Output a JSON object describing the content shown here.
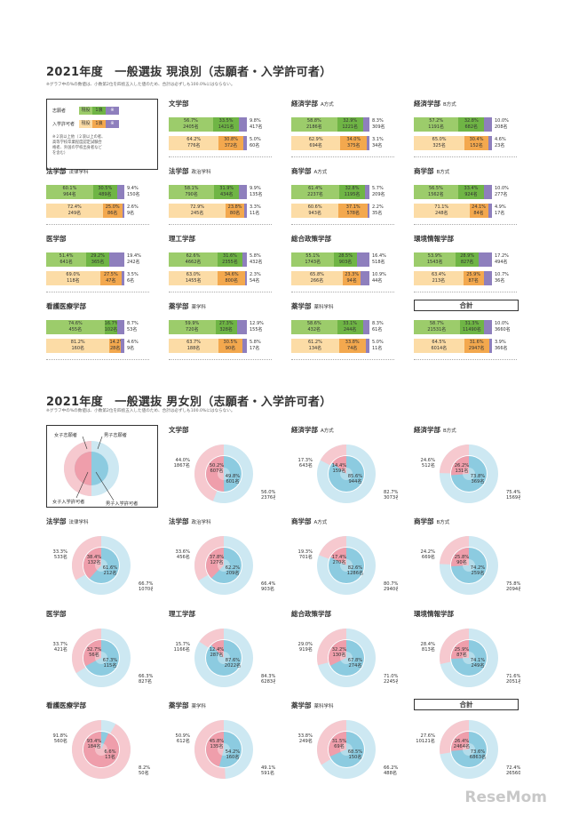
{
  "section1": {
    "title": "2021年度　一般選抜 現浪別（志願者・入学許可者）",
    "note": "※グラフ中の%の数値は、小数第2位を四捨五入した値のため、合計は必ずしも100.0%にはならない。",
    "legend": {
      "applicants": "志願者",
      "admitted": "入学許可者",
      "current": "現役",
      "ronin1": "1浪",
      "ronin2": "※",
      "note": "※２浪以上他（２浪以上の者、高等学校卒業程度認定試験合格者、外国の学校出身者などを含む）"
    },
    "colors": {
      "applicant_current": "#9ccc6b",
      "applicant_ronin": "#6fb545",
      "admitted_current": "#fcdca6",
      "admitted_ronin": "#f3a84e",
      "other": "#8e7fbd"
    },
    "panels": [
      {
        "title": "文学部",
        "sub": "",
        "app": [
          [
            "56.7%",
            "2405名"
          ],
          [
            "33.5%",
            "1421名"
          ],
          [
            "9.8%",
            "417名"
          ]
        ],
        "adm": [
          [
            "64.2%",
            "776名"
          ],
          [
            "30.8%",
            "372名"
          ],
          [
            "5.0%",
            "60名"
          ]
        ]
      },
      {
        "title": "経済学部",
        "sub": "A方式",
        "app": [
          [
            "58.8%",
            "2186名"
          ],
          [
            "32.9%",
            "1221名"
          ],
          [
            "8.3%",
            "309名"
          ]
        ],
        "adm": [
          [
            "62.9%",
            "694名"
          ],
          [
            "34.0%",
            "375名"
          ],
          [
            "3.1%",
            "34名"
          ]
        ]
      },
      {
        "title": "経済学部",
        "sub": "B方式",
        "app": [
          [
            "57.2%",
            "1191名"
          ],
          [
            "32.8%",
            "682名"
          ],
          [
            "10.0%",
            "208名"
          ]
        ],
        "adm": [
          [
            "65.0%",
            "325名"
          ],
          [
            "30.4%",
            "152名"
          ],
          [
            "4.6%",
            "23名"
          ]
        ]
      },
      {
        "title": "法学部",
        "sub": "法律学科",
        "app": [
          [
            "60.1%",
            "964名"
          ],
          [
            "30.5%",
            "489名"
          ],
          [
            "9.4%",
            "150名"
          ]
        ],
        "adm": [
          [
            "72.4%",
            "249名"
          ],
          [
            "25.0%",
            "86名"
          ],
          [
            "2.6%",
            "9名"
          ]
        ]
      },
      {
        "title": "法学部",
        "sub": "政治学科",
        "app": [
          [
            "58.1%",
            "790名"
          ],
          [
            "31.9%",
            "434名"
          ],
          [
            "9.9%",
            "135名"
          ]
        ],
        "adm": [
          [
            "72.9%",
            "245名"
          ],
          [
            "23.8%",
            "80名"
          ],
          [
            "3.3%",
            "11名"
          ]
        ]
      },
      {
        "title": "商学部",
        "sub": "A方式",
        "app": [
          [
            "61.4%",
            "2237名"
          ],
          [
            "32.8%",
            "1195名"
          ],
          [
            "5.7%",
            "209名"
          ]
        ],
        "adm": [
          [
            "60.6%",
            "943名"
          ],
          [
            "37.1%",
            "578名"
          ],
          [
            "2.2%",
            "35名"
          ]
        ]
      },
      {
        "title": "商学部",
        "sub": "B方式",
        "app": [
          [
            "56.5%",
            "1562名"
          ],
          [
            "33.4%",
            "924名"
          ],
          [
            "10.0%",
            "277名"
          ]
        ],
        "adm": [
          [
            "71.1%",
            "248名"
          ],
          [
            "24.1%",
            "84名"
          ],
          [
            "4.9%",
            "17名"
          ]
        ]
      },
      {
        "title": "医学部",
        "sub": "",
        "app": [
          [
            "51.4%",
            "641名"
          ],
          [
            "29.2%",
            "365名"
          ],
          [
            "19.4%",
            "242名"
          ]
        ],
        "adm": [
          [
            "69.0%",
            "118名"
          ],
          [
            "27.5%",
            "47名"
          ],
          [
            "3.5%",
            "6名"
          ]
        ]
      },
      {
        "title": "理工学部",
        "sub": "",
        "app": [
          [
            "62.6%",
            "4662名"
          ],
          [
            "31.6%",
            "2355名"
          ],
          [
            "5.8%",
            "432名"
          ]
        ],
        "adm": [
          [
            "63.0%",
            "1455名"
          ],
          [
            "34.6%",
            "800名"
          ],
          [
            "2.3%",
            "54名"
          ]
        ]
      },
      {
        "title": "総合政策学部",
        "sub": "",
        "app": [
          [
            "55.1%",
            "1743名"
          ],
          [
            "28.5%",
            "903名"
          ],
          [
            "16.4%",
            "518名"
          ]
        ],
        "adm": [
          [
            "65.8%",
            "266名"
          ],
          [
            "23.3%",
            "94名"
          ],
          [
            "10.9%",
            "44名"
          ]
        ]
      },
      {
        "title": "環境情報学部",
        "sub": "",
        "app": [
          [
            "53.9%",
            "1543名"
          ],
          [
            "28.9%",
            "827名"
          ],
          [
            "17.2%",
            "494名"
          ]
        ],
        "adm": [
          [
            "63.4%",
            "213名"
          ],
          [
            "25.9%",
            "87名"
          ],
          [
            "10.7%",
            "36名"
          ]
        ]
      },
      {
        "title": "看護医療学部",
        "sub": "",
        "app": [
          [
            "74.6%",
            "455名"
          ],
          [
            "16.7%",
            "102名"
          ],
          [
            "8.7%",
            "53名"
          ]
        ],
        "adm": [
          [
            "81.2%",
            "160名"
          ],
          [
            "14.2%",
            "28名"
          ],
          [
            "4.6%",
            "9名"
          ]
        ]
      },
      {
        "title": "薬学部",
        "sub": "薬学科",
        "app": [
          [
            "59.9%",
            "720名"
          ],
          [
            "27.3%",
            "328名"
          ],
          [
            "12.9%",
            "155名"
          ]
        ],
        "adm": [
          [
            "63.7%",
            "188名"
          ],
          [
            "30.5%",
            "90名"
          ],
          [
            "5.8%",
            "17名"
          ]
        ]
      },
      {
        "title": "薬学部",
        "sub": "薬科学科",
        "app": [
          [
            "58.6%",
            "432名"
          ],
          [
            "33.1%",
            "244名"
          ],
          [
            "8.3%",
            "61名"
          ]
        ],
        "adm": [
          [
            "61.2%",
            "134名"
          ],
          [
            "33.8%",
            "74名"
          ],
          [
            "5.0%",
            "11名"
          ]
        ]
      },
      {
        "title": "合計",
        "sub": "",
        "boxed": true,
        "app": [
          [
            "58.7%",
            "21531名"
          ],
          [
            "31.3%",
            "11490名"
          ],
          [
            "10.0%",
            "3660名"
          ]
        ],
        "adm": [
          [
            "64.5%",
            "6014名"
          ],
          [
            "31.6%",
            "2947名"
          ],
          [
            "3.9%",
            "366名"
          ]
        ]
      }
    ]
  },
  "section2": {
    "title": "2021年度　一般選抜 男女別（志願者・入学許可者）",
    "note": "※グラフ中の%の数値は、小数第2位を四捨五入した値のため、合計は必ずしも100.0%にはならない。",
    "legend": {
      "female_app": "女子志願者",
      "male_app": "男子志願者",
      "female_adm": "女子入学許可者",
      "male_adm": "男子入学許可者"
    },
    "colors": {
      "female_outer": "#f6c9cf",
      "male_outer": "#cde8f2",
      "female_inner": "#ef9eab",
      "male_inner": "#8ccbe0"
    },
    "panels": [
      {
        "title": "文学部",
        "sub": "",
        "of": [
          "44.0%",
          "1867名"
        ],
        "om": [
          "56.0%",
          "2376名"
        ],
        "if": [
          "50.2%",
          "607名"
        ],
        "im": [
          "49.8%",
          "601名"
        ]
      },
      {
        "title": "経済学部",
        "sub": "A方式",
        "of": [
          "17.3%",
          "643名"
        ],
        "om": [
          "82.7%",
          "3073名"
        ],
        "if": [
          "14.4%",
          "159名"
        ],
        "im": [
          "85.6%",
          "944名"
        ]
      },
      {
        "title": "経済学部",
        "sub": "B方式",
        "of": [
          "24.6%",
          "512名"
        ],
        "om": [
          "75.4%",
          "1569名"
        ],
        "if": [
          "26.2%",
          "131名"
        ],
        "im": [
          "73.8%",
          "369名"
        ]
      },
      {
        "title": "法学部",
        "sub": "法律学科",
        "of": [
          "33.3%",
          "533名"
        ],
        "om": [
          "66.7%",
          "1070名"
        ],
        "if": [
          "38.4%",
          "132名"
        ],
        "im": [
          "61.6%",
          "212名"
        ]
      },
      {
        "title": "法学部",
        "sub": "政治学科",
        "of": [
          "33.6%",
          "456名"
        ],
        "om": [
          "66.4%",
          "903名"
        ],
        "if": [
          "37.8%",
          "127名"
        ],
        "im": [
          "62.2%",
          "209名"
        ]
      },
      {
        "title": "商学部",
        "sub": "A方式",
        "of": [
          "19.3%",
          "701名"
        ],
        "om": [
          "80.7%",
          "2940名"
        ],
        "if": [
          "17.4%",
          "270名"
        ],
        "im": [
          "82.6%",
          "1286名"
        ]
      },
      {
        "title": "商学部",
        "sub": "B方式",
        "of": [
          "24.2%",
          "669名"
        ],
        "om": [
          "75.8%",
          "2094名"
        ],
        "if": [
          "25.8%",
          "90名"
        ],
        "im": [
          "74.2%",
          "259名"
        ]
      },
      {
        "title": "医学部",
        "sub": "",
        "of": [
          "33.7%",
          "421名"
        ],
        "om": [
          "66.3%",
          "827名"
        ],
        "if": [
          "32.7%",
          "56名"
        ],
        "im": [
          "67.3%",
          "115名"
        ]
      },
      {
        "title": "理工学部",
        "sub": "",
        "of": [
          "15.7%",
          "1166名"
        ],
        "om": [
          "84.3%",
          "6283名"
        ],
        "if": [
          "12.4%",
          "287名"
        ],
        "im": [
          "87.6%",
          "2022名"
        ]
      },
      {
        "title": "総合政策学部",
        "sub": "",
        "of": [
          "29.0%",
          "919名"
        ],
        "om": [
          "71.0%",
          "2245名"
        ],
        "if": [
          "32.2%",
          "130名"
        ],
        "im": [
          "67.8%",
          "274名"
        ]
      },
      {
        "title": "環境情報学部",
        "sub": "",
        "of": [
          "28.4%",
          "813名"
        ],
        "om": [
          "71.6%",
          "2051名"
        ],
        "if": [
          "25.9%",
          "87名"
        ],
        "im": [
          "74.1%",
          "249名"
        ]
      },
      {
        "title": "看護医療学部",
        "sub": "",
        "of": [
          "91.8%",
          "560名"
        ],
        "om": [
          "8.2%",
          "50名"
        ],
        "if": [
          "93.4%",
          "184名"
        ],
        "im": [
          "6.6%",
          "13名"
        ]
      },
      {
        "title": "薬学部",
        "sub": "薬学科",
        "of": [
          "50.9%",
          "612名"
        ],
        "om": [
          "49.1%",
          "591名"
        ],
        "if": [
          "45.8%",
          "135名"
        ],
        "im": [
          "54.2%",
          "160名"
        ]
      },
      {
        "title": "薬学部",
        "sub": "薬科学科",
        "of": [
          "33.8%",
          "249名"
        ],
        "om": [
          "66.2%",
          "488名"
        ],
        "if": [
          "31.5%",
          "69名"
        ],
        "im": [
          "68.5%",
          "150名"
        ]
      },
      {
        "title": "合計",
        "sub": "",
        "boxed": true,
        "of": [
          "27.6%",
          "10121名"
        ],
        "om": [
          "72.4%",
          "26560名"
        ],
        "if": [
          "26.4%",
          "2464名"
        ],
        "im": [
          "73.6%",
          "6863名"
        ]
      }
    ]
  },
  "watermark": "ReseMom",
  "chart_data": [
    {
      "type": "bar",
      "title": "2021年度　一般選抜 現浪別（志願者・入学許可者）",
      "categories": [
        "文学部",
        "経済学部 A方式",
        "経済学部 B方式",
        "法学部 法律学科",
        "法学部 政治学科",
        "商学部 A方式",
        "商学部 B方式",
        "医学部",
        "理工学部",
        "総合政策学部",
        "環境情報学部",
        "看護医療学部",
        "薬学部 薬学科",
        "薬学部 薬科学科",
        "合計"
      ],
      "series": [
        {
          "name": "志願者 現役",
          "values": [
            56.7,
            58.8,
            57.2,
            60.1,
            58.1,
            61.4,
            56.5,
            51.4,
            62.6,
            55.1,
            53.9,
            74.6,
            59.9,
            58.6,
            58.7
          ]
        },
        {
          "name": "志願者 1浪",
          "values": [
            33.5,
            32.9,
            32.8,
            30.5,
            31.9,
            32.8,
            33.4,
            29.2,
            31.6,
            28.5,
            28.9,
            16.7,
            27.3,
            33.1,
            31.3
          ]
        },
        {
          "name": "志願者 ※",
          "values": [
            9.8,
            8.3,
            10.0,
            9.4,
            9.9,
            5.7,
            10.0,
            19.4,
            5.8,
            16.4,
            17.2,
            8.7,
            12.9,
            8.3,
            10.0
          ]
        },
        {
          "name": "入学許可者 現役",
          "values": [
            64.2,
            62.9,
            65.0,
            72.4,
            72.9,
            60.6,
            71.1,
            69.0,
            63.0,
            65.8,
            63.4,
            81.2,
            63.7,
            61.2,
            64.5
          ]
        },
        {
          "name": "入学許可者 1浪",
          "values": [
            30.8,
            34.0,
            30.4,
            25.0,
            23.8,
            37.1,
            24.1,
            27.5,
            34.6,
            23.3,
            25.9,
            14.2,
            30.5,
            33.8,
            31.6
          ]
        },
        {
          "name": "入学許可者 ※",
          "values": [
            5.0,
            3.1,
            4.6,
            2.6,
            3.3,
            2.2,
            4.9,
            3.5,
            2.3,
            10.9,
            10.7,
            4.6,
            5.8,
            5.0,
            3.9
          ]
        }
      ]
    },
    {
      "type": "pie",
      "title": "2021年度　一般選抜 男女別（志願者・入学許可者）",
      "categories": [
        "文学部",
        "経済学部 A方式",
        "経済学部 B方式",
        "法学部 法律学科",
        "法学部 政治学科",
        "商学部 A方式",
        "商学部 B方式",
        "医学部",
        "理工学部",
        "総合政策学部",
        "環境情報学部",
        "看護医療学部",
        "薬学部 薬学科",
        "薬学部 薬科学科",
        "合計"
      ],
      "series": [
        {
          "name": "女子志願者",
          "values": [
            44.0,
            17.3,
            24.6,
            33.3,
            33.6,
            19.3,
            24.2,
            33.7,
            15.7,
            29.0,
            28.4,
            91.8,
            50.9,
            33.8,
            27.6
          ]
        },
        {
          "name": "男子志願者",
          "values": [
            56.0,
            82.7,
            75.4,
            66.7,
            66.4,
            80.7,
            75.8,
            66.3,
            84.3,
            71.0,
            71.6,
            8.2,
            49.1,
            66.2,
            72.4
          ]
        },
        {
          "name": "女子入学許可者",
          "values": [
            50.2,
            14.4,
            26.2,
            38.4,
            37.8,
            17.4,
            25.8,
            32.7,
            12.4,
            32.2,
            25.9,
            93.4,
            45.8,
            31.5,
            26.4
          ]
        },
        {
          "name": "男子入学許可者",
          "values": [
            49.8,
            85.6,
            73.8,
            61.6,
            62.2,
            82.6,
            74.2,
            67.3,
            87.6,
            67.8,
            74.1,
            6.6,
            54.2,
            68.5,
            73.6
          ]
        }
      ]
    }
  ]
}
